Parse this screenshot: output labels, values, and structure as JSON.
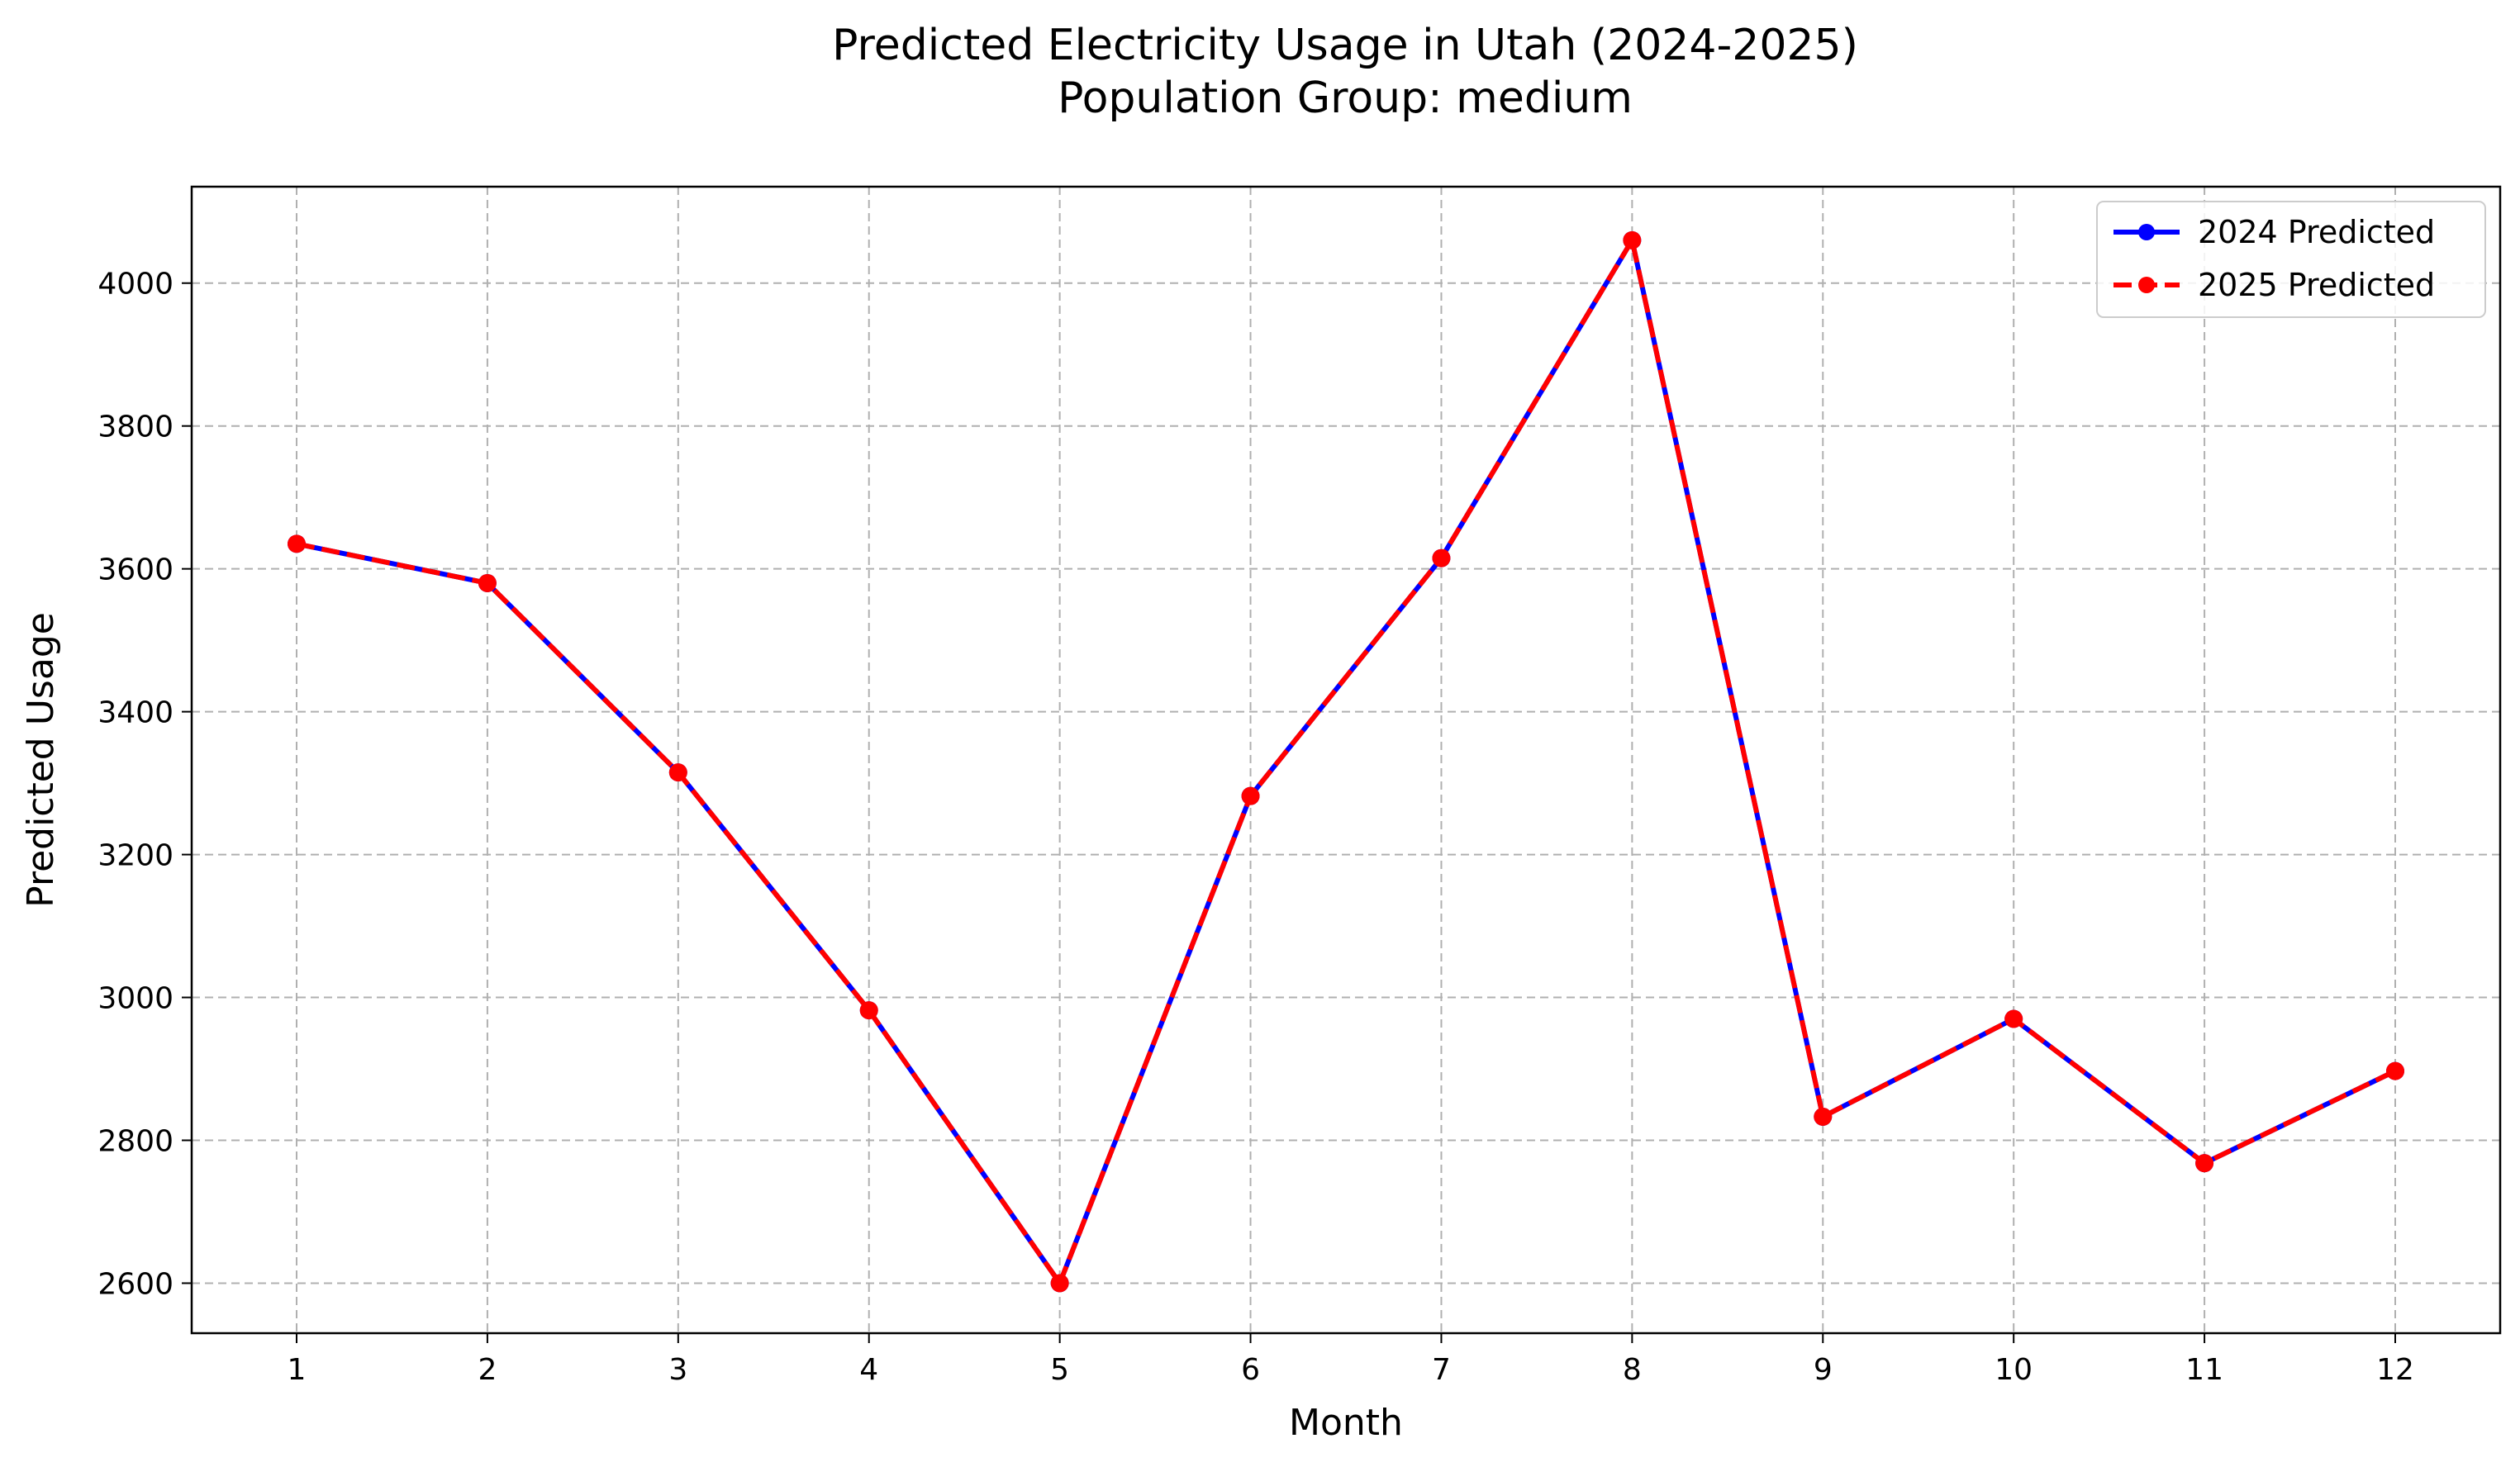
{
  "chart_data": {
    "type": "line",
    "title": "Predicted Electricity Usage in Utah (2024-2025)",
    "subtitle": "Population Group: medium",
    "xlabel": "Month",
    "ylabel": "Predicted Usage",
    "x": [
      1,
      2,
      3,
      4,
      5,
      6,
      7,
      8,
      9,
      10,
      11,
      12
    ],
    "xlim": [
      0.45,
      12.55
    ],
    "ylim": [
      2530,
      4135
    ],
    "yticks": [
      2600,
      2800,
      3000,
      3200,
      3400,
      3600,
      3800,
      4000
    ],
    "grid": true,
    "legend_position": "top-right",
    "series": [
      {
        "name": "2024 Predicted",
        "color": "#0000ff",
        "line_style": "solid",
        "marker": "circle",
        "values": [
          3635,
          3580,
          3315,
          2982,
          2600,
          3282,
          3615,
          4060,
          2833,
          2970,
          2768,
          2897
        ]
      },
      {
        "name": "2025 Predicted",
        "color": "#ff0000",
        "line_style": "dashed",
        "marker": "circle",
        "values": [
          3635,
          3580,
          3315,
          2982,
          2600,
          3282,
          3615,
          4060,
          2833,
          2970,
          2768,
          2897
        ]
      }
    ]
  }
}
